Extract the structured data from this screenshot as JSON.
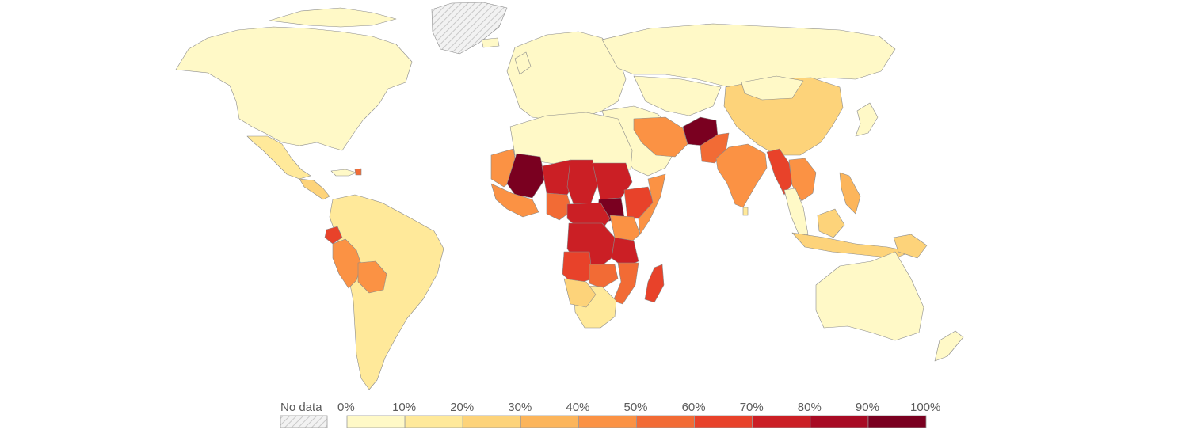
{
  "legend": {
    "no_data_label": "No data",
    "tick_labels": [
      "0%",
      "10%",
      "20%",
      "30%",
      "40%",
      "50%",
      "60%",
      "70%",
      "80%",
      "90%",
      "100%"
    ],
    "bin_colors": [
      "#fff9c7",
      "#ffe99a",
      "#fdd37a",
      "#fcb55b",
      "#fb9244",
      "#f26b35",
      "#e8422a",
      "#cb1f25",
      "#a80b24",
      "#7a0020"
    ],
    "no_data_color": "#e8e8e8"
  },
  "regions": {
    "north_america": "0-10%",
    "greenland": "No data",
    "mexico": "10-20%",
    "central_america": "20-30%",
    "haiti": "50-60%",
    "south_america": "10-20%",
    "peru": "30-40%",
    "ecuador": "50-60%",
    "bolivia": "30-40%",
    "europe": "0-10%",
    "russia": "0-10%",
    "north_africa": "0-10%",
    "mauritania": "40-50%",
    "mali": "90-100%",
    "niger": "70-80%",
    "chad": "70-80%",
    "sudan": "70-80%",
    "south_sudan": "90-100%",
    "ethiopia": "60-70%",
    "somalia": "40-50%",
    "west_africa_coast": "40-50%",
    "nigeria": "50-60%",
    "central_africa": "70-80%",
    "drc": "70-80%",
    "tanzania": "60-70%",
    "angola": "60-70%",
    "zambia": "50-60%",
    "mozambique": "50-60%",
    "southern_africa": "10-20%",
    "madagascar": "60-70%",
    "middle_east": "0-10%",
    "iran": "30-40%",
    "afghanistan": "80-90%",
    "pakistan": "50-60%",
    "india": "40-50%",
    "china": "10-20%",
    "myanmar": "50-60%",
    "southeast_asia": "30-40%",
    "indonesia": "10-20%",
    "philippines": "30-40%",
    "australia": "0-10%",
    "papua_new_guinea": "20-30%"
  }
}
